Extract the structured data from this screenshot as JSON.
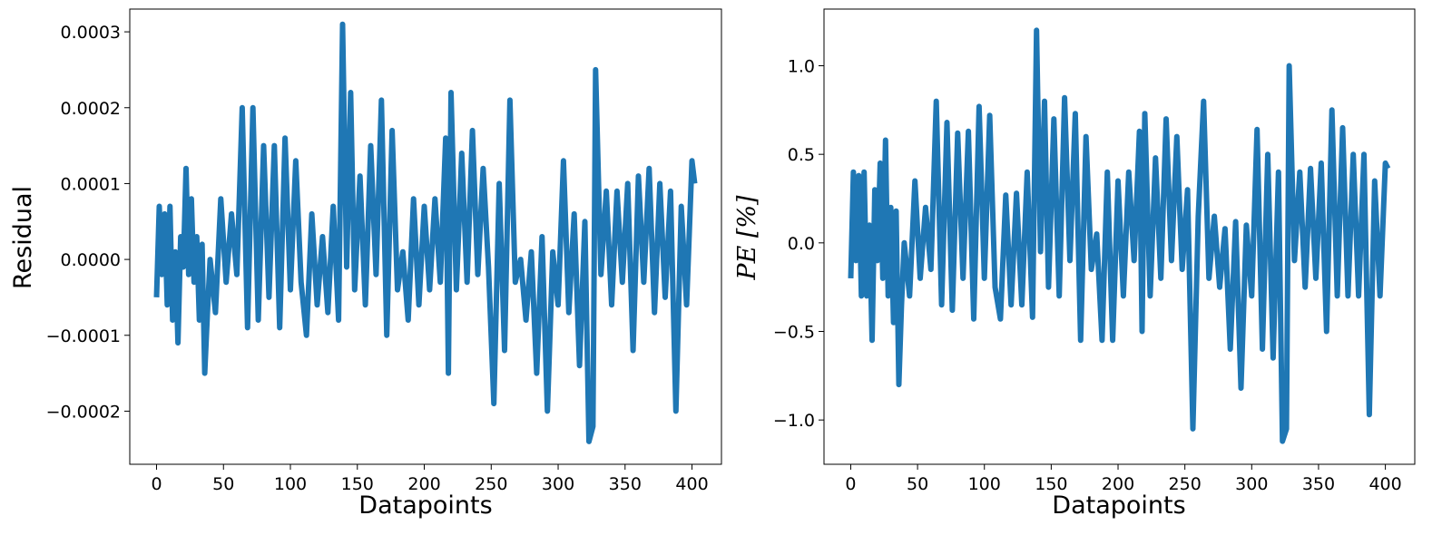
{
  "chart_data": [
    {
      "type": "line",
      "xlabel": "Datapoints",
      "ylabel": "Residual",
      "xlim": [
        -20,
        422
      ],
      "ylim": [
        -0.00027,
        0.00033
      ],
      "xticks": [
        0,
        50,
        100,
        150,
        200,
        250,
        300,
        350,
        400
      ],
      "xtick_labels": [
        "0",
        "50",
        "100",
        "150",
        "200",
        "250",
        "300",
        "350",
        "400"
      ],
      "yticks": [
        -0.0002,
        -0.0001,
        0,
        0.0001,
        0.0002,
        0.0003
      ],
      "ytick_labels": [
        "−0.0002",
        "−0.0001",
        "0.0000",
        "0.0001",
        "0.0002",
        "0.0003"
      ],
      "grid": false,
      "color": "#1f77b4",
      "series": [
        {
          "x": [
            0,
            2,
            4,
            6,
            8,
            10,
            12,
            14,
            16,
            18,
            20,
            22,
            24,
            26,
            28,
            30,
            32,
            34,
            36,
            38,
            40,
            44,
            48,
            52,
            56,
            60,
            64,
            68,
            72,
            76,
            80,
            84,
            88,
            92,
            96,
            100,
            104,
            108,
            112,
            116,
            120,
            124,
            128,
            132,
            136,
            139,
            142,
            145,
            148,
            152,
            156,
            160,
            164,
            168,
            172,
            176,
            180,
            184,
            188,
            192,
            196,
            200,
            204,
            208,
            212,
            216,
            218,
            220,
            224,
            228,
            232,
            236,
            240,
            244,
            248,
            252,
            256,
            260,
            264,
            268,
            272,
            276,
            280,
            284,
            288,
            292,
            296,
            300,
            304,
            308,
            312,
            316,
            320,
            323,
            326,
            328,
            332,
            336,
            340,
            344,
            348,
            352,
            356,
            360,
            364,
            368,
            372,
            376,
            380,
            384,
            388,
            392,
            396,
            400,
            402
          ],
          "values": [
            -5e-05,
            7e-05,
            -2e-05,
            6e-05,
            -6e-05,
            7e-05,
            -8e-05,
            1e-05,
            -0.00011,
            3e-05,
            -1e-05,
            0.00012,
            -2e-05,
            8e-05,
            -3e-05,
            3e-05,
            -8e-05,
            2e-05,
            -0.00015,
            -7e-05,
            0.0,
            -7e-05,
            8e-05,
            -3e-05,
            6e-05,
            -2e-05,
            0.0002,
            -9e-05,
            0.0002,
            -8e-05,
            0.00015,
            -5e-05,
            0.00015,
            -9e-05,
            0.00016,
            -4e-05,
            0.00013,
            -3e-05,
            -0.0001,
            6e-05,
            -6e-05,
            3e-05,
            -7e-05,
            7e-05,
            -8e-05,
            0.00031,
            -1e-05,
            0.00022,
            -4e-05,
            0.00011,
            -6e-05,
            0.00015,
            -2e-05,
            0.00021,
            -0.0001,
            0.00017,
            -4e-05,
            1e-05,
            -8e-05,
            8e-05,
            -6e-05,
            7e-05,
            -4e-05,
            8e-05,
            -3e-05,
            0.00016,
            -0.00015,
            0.00022,
            -4e-05,
            0.00014,
            -3e-05,
            0.00017,
            -2e-05,
            0.00012,
            -1e-05,
            -0.00019,
            0.0001,
            -0.00012,
            0.00021,
            -3e-05,
            0.0,
            -8e-05,
            1e-05,
            -0.00015,
            3e-05,
            -0.0002,
            1e-05,
            -6e-05,
            0.00013,
            -7e-05,
            6e-05,
            -0.00014,
            5e-05,
            -0.00024,
            -0.00022,
            0.00025,
            -2e-05,
            9e-05,
            -6e-05,
            9e-05,
            -3e-05,
            0.0001,
            -0.00012,
            0.00011,
            -3e-05,
            0.00012,
            -7e-05,
            0.0001,
            -5e-05,
            9e-05,
            -0.0002,
            7e-05,
            -6e-05,
            0.00013,
            0.0001
          ]
        }
      ]
    },
    {
      "type": "line",
      "xlabel": "Datapoints",
      "ylabel": "PE [%]",
      "xlim": [
        -20,
        422
      ],
      "ylim": [
        -1.25,
        1.32
      ],
      "xticks": [
        0,
        50,
        100,
        150,
        200,
        250,
        300,
        350,
        400
      ],
      "xtick_labels": [
        "0",
        "50",
        "100",
        "150",
        "200",
        "250",
        "300",
        "350",
        "400"
      ],
      "yticks": [
        -1.0,
        -0.5,
        0.0,
        0.5,
        1.0
      ],
      "ytick_labels": [
        "−1.0",
        "−0.5",
        "0.0",
        "0.5",
        "1.0"
      ],
      "grid": false,
      "color": "#1f77b4",
      "series": [
        {
          "x": [
            0,
            2,
            4,
            6,
            8,
            10,
            12,
            14,
            16,
            18,
            20,
            22,
            24,
            26,
            28,
            30,
            32,
            34,
            36,
            38,
            40,
            44,
            48,
            52,
            56,
            60,
            64,
            68,
            72,
            76,
            80,
            84,
            88,
            92,
            96,
            100,
            104,
            108,
            112,
            116,
            120,
            124,
            128,
            132,
            136,
            139,
            142,
            145,
            148,
            152,
            156,
            160,
            164,
            168,
            172,
            176,
            180,
            184,
            188,
            192,
            196,
            200,
            204,
            208,
            212,
            216,
            218,
            220,
            224,
            228,
            232,
            236,
            240,
            244,
            248,
            252,
            256,
            260,
            264,
            268,
            272,
            276,
            280,
            284,
            288,
            292,
            296,
            300,
            304,
            308,
            312,
            316,
            320,
            323,
            326,
            328,
            332,
            336,
            340,
            344,
            348,
            352,
            356,
            360,
            364,
            368,
            372,
            376,
            380,
            384,
            388,
            392,
            396,
            400,
            402
          ],
          "values": [
            -0.2,
            0.4,
            -0.1,
            0.38,
            -0.3,
            0.4,
            -0.3,
            0.1,
            -0.55,
            0.3,
            -0.1,
            0.45,
            -0.2,
            0.58,
            -0.3,
            0.2,
            -0.45,
            0.18,
            -0.8,
            -0.35,
            0.0,
            -0.3,
            0.35,
            -0.2,
            0.2,
            -0.15,
            0.8,
            -0.35,
            0.68,
            -0.38,
            0.62,
            -0.2,
            0.63,
            -0.43,
            0.77,
            -0.2,
            0.72,
            -0.25,
            -0.43,
            0.27,
            -0.35,
            0.28,
            -0.35,
            0.4,
            -0.42,
            1.2,
            -0.05,
            0.8,
            -0.25,
            0.7,
            -0.3,
            0.82,
            -0.1,
            0.73,
            -0.55,
            0.6,
            -0.15,
            0.05,
            -0.55,
            0.4,
            -0.55,
            0.35,
            -0.3,
            0.4,
            -0.1,
            0.63,
            -0.5,
            0.73,
            -0.3,
            0.48,
            -0.2,
            0.7,
            -0.1,
            0.6,
            -0.15,
            0.3,
            -1.05,
            0.15,
            0.8,
            -0.2,
            0.15,
            -0.25,
            0.08,
            -0.6,
            0.12,
            -0.82,
            0.1,
            -0.3,
            0.64,
            -0.6,
            0.5,
            -0.65,
            0.4,
            -1.12,
            -1.05,
            1.0,
            -0.1,
            0.4,
            -0.25,
            0.42,
            -0.2,
            0.45,
            -0.5,
            0.75,
            -0.3,
            0.65,
            -0.3,
            0.5,
            -0.3,
            0.5,
            -0.97,
            0.35,
            -0.3,
            0.45,
            0.42
          ]
        }
      ]
    }
  ]
}
